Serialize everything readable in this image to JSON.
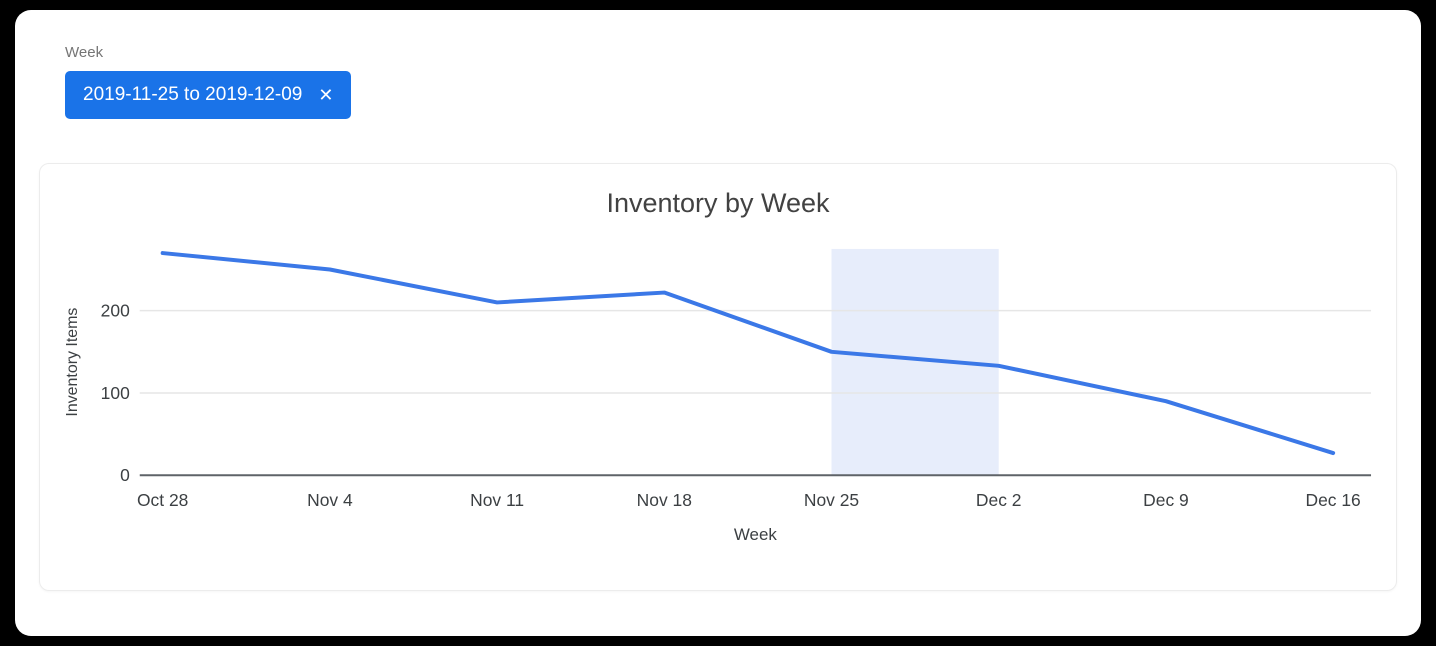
{
  "filter": {
    "label": "Week",
    "chip": {
      "text": "2019-11-25 to 2019-12-09",
      "close_icon": "✕"
    }
  },
  "chart_data": {
    "type": "line",
    "title": "Inventory by Week",
    "xlabel": "Week",
    "ylabel": "Inventory Items",
    "categories": [
      "Oct 28",
      "Nov 4",
      "Nov 11",
      "Nov 18",
      "Nov 25",
      "Dec 2",
      "Dec 9",
      "Dec 16"
    ],
    "series": [
      {
        "name": "Inventory Items",
        "values": [
          270,
          250,
          210,
          222,
          150,
          133,
          90,
          27
        ]
      }
    ],
    "ylim": [
      0,
      275
    ],
    "yticks": [
      0,
      100,
      200
    ],
    "grid": true,
    "legend": "none",
    "line_color": "#3b78e7",
    "highlight": {
      "from": "Nov 25",
      "to": "Dec 2",
      "from_index": 4,
      "to_index": 5,
      "color": "#e7edfb"
    }
  },
  "colors": {
    "chip_bg": "#1a73e8",
    "chip_text": "#ffffff",
    "filter_label": "#757575",
    "axis_text": "#3c4043",
    "gridline": "#e6e6e6",
    "baseline": "#5f6368",
    "title_text": "#424242"
  }
}
